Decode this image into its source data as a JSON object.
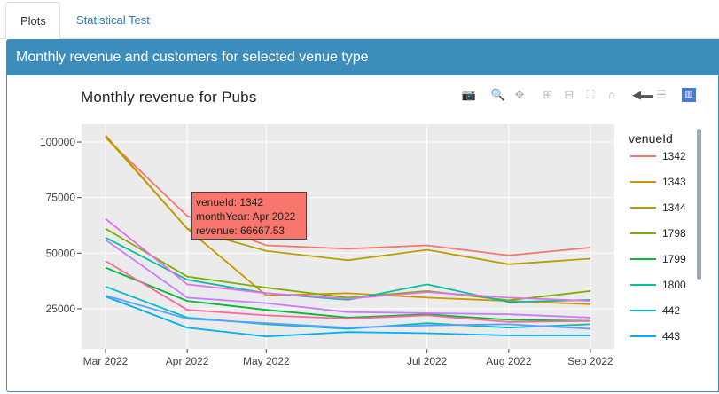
{
  "tabs": [
    {
      "label": "Plots",
      "active": true
    },
    {
      "label": "Statistical Test",
      "active": false
    }
  ],
  "panel": {
    "title": "Monthly revenue and customers for selected venue type"
  },
  "modebar": {
    "icons": [
      "camera-icon",
      "zoom-icon",
      "pan-icon",
      "zoom-in-icon",
      "zoom-out-icon",
      "autoscale-icon",
      "home-icon",
      "spike-icon",
      "compare-icon",
      "plotly-logo-icon"
    ]
  },
  "chart_data": {
    "type": "line",
    "title": "Monthly revenue for Pubs",
    "xlabel": "",
    "ylabel": "",
    "x": [
      "2022-03-01",
      "2022-04-01",
      "2022-05-01",
      "2022-06-01",
      "2022-07-01",
      "2022-08-01",
      "2022-09-01"
    ],
    "x_ticks": [
      {
        "date": "2022-03-01",
        "label": "Mar 2022"
      },
      {
        "date": "2022-04-01",
        "label": "Apr 2022"
      },
      {
        "date": "2022-05-01",
        "label": "May 2022"
      },
      {
        "date": "2022-07-01",
        "label": "Jul 2022"
      },
      {
        "date": "2022-08-01",
        "label": "Aug 2022"
      },
      {
        "date": "2022-09-01",
        "label": "Sep 2022"
      }
    ],
    "y_ticks": [
      {
        "value": 25000,
        "label": "25000"
      },
      {
        "value": 50000,
        "label": "50000"
      },
      {
        "value": 75000,
        "label": "75000"
      },
      {
        "value": 100000,
        "label": "100000"
      }
    ],
    "ylim": [
      7000,
      108000
    ],
    "grid": true,
    "legend_title": "venueId",
    "legend_position": "right",
    "series": [
      {
        "name": "1342",
        "color": "#f8766d",
        "values": [
          102000,
          66667.53,
          53500,
          52000,
          53500,
          49000,
          52500
        ]
      },
      {
        "name": "1343",
        "color": "#cd9600",
        "values": [
          103000,
          61000,
          31000,
          32000,
          30000,
          28500,
          27000
        ]
      },
      {
        "name": "1344",
        "color": "#b79f00",
        "values": [
          102500,
          61000,
          51000,
          46800,
          51500,
          45000,
          47500
        ]
      },
      {
        "name": "1798",
        "color": "#7cae00",
        "values": [
          61000,
          39500,
          34500,
          30000,
          33000,
          28800,
          33000
        ]
      },
      {
        "name": "1799",
        "color": "#00ba38",
        "values": [
          43500,
          28500,
          24500,
          21000,
          22500,
          20000,
          19500
        ]
      },
      {
        "name": "1800",
        "color": "#00c19f",
        "values": [
          57000,
          38000,
          32000,
          29000,
          36000,
          28000,
          29000
        ]
      },
      {
        "name": "442",
        "color": "#00bfc4",
        "values": [
          35000,
          21000,
          18000,
          16000,
          18500,
          16500,
          18000
        ]
      },
      {
        "name": "443",
        "color": "#00b0f6",
        "values": [
          30500,
          16500,
          12500,
          14500,
          14000,
          13000,
          13000
        ]
      },
      {
        "name": "",
        "color": "#619cff",
        "values": [
          31000,
          20500,
          18500,
          16500,
          17500,
          18000,
          16000
        ]
      },
      {
        "name": "",
        "color": "#c77cff",
        "values": [
          56000,
          30000,
          27500,
          23500,
          23000,
          22500,
          21000
        ]
      },
      {
        "name": "",
        "color": "#e76bf3",
        "values": [
          65500,
          36000,
          32000,
          29500,
          32500,
          30000,
          28500
        ]
      },
      {
        "name": "",
        "color": "#ff67a4",
        "values": [
          46500,
          24500,
          22000,
          20500,
          22000,
          19000,
          19500
        ]
      }
    ]
  },
  "tooltip": {
    "line1": "venueId: 1342",
    "line2": "monthYear: Apr 2022",
    "line3": "revenue:  66667.53"
  }
}
